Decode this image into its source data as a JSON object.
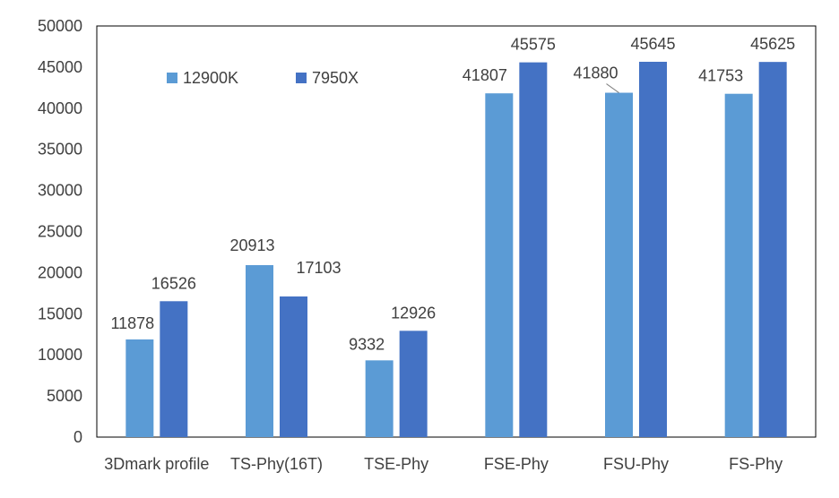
{
  "chart_data": {
    "type": "bar",
    "categories": [
      "3Dmark profile",
      "TS-Phy(16T)",
      "TSE-Phy",
      "FSE-Phy",
      "FSU-Phy",
      "FS-Phy"
    ],
    "series": [
      {
        "name": "12900K",
        "color": "#5B9BD5",
        "values": [
          11878,
          20913,
          9332,
          41807,
          41880,
          41753
        ]
      },
      {
        "name": "7950X",
        "color": "#4472C4",
        "values": [
          16526,
          17103,
          12926,
          45575,
          45645,
          45625
        ]
      }
    ],
    "ylim": [
      0,
      50000
    ],
    "yticks": [
      0,
      5000,
      10000,
      15000,
      20000,
      25000,
      30000,
      35000,
      40000,
      45000,
      50000
    ],
    "grid": false,
    "legend_position": "top-left",
    "data_labels": true
  }
}
